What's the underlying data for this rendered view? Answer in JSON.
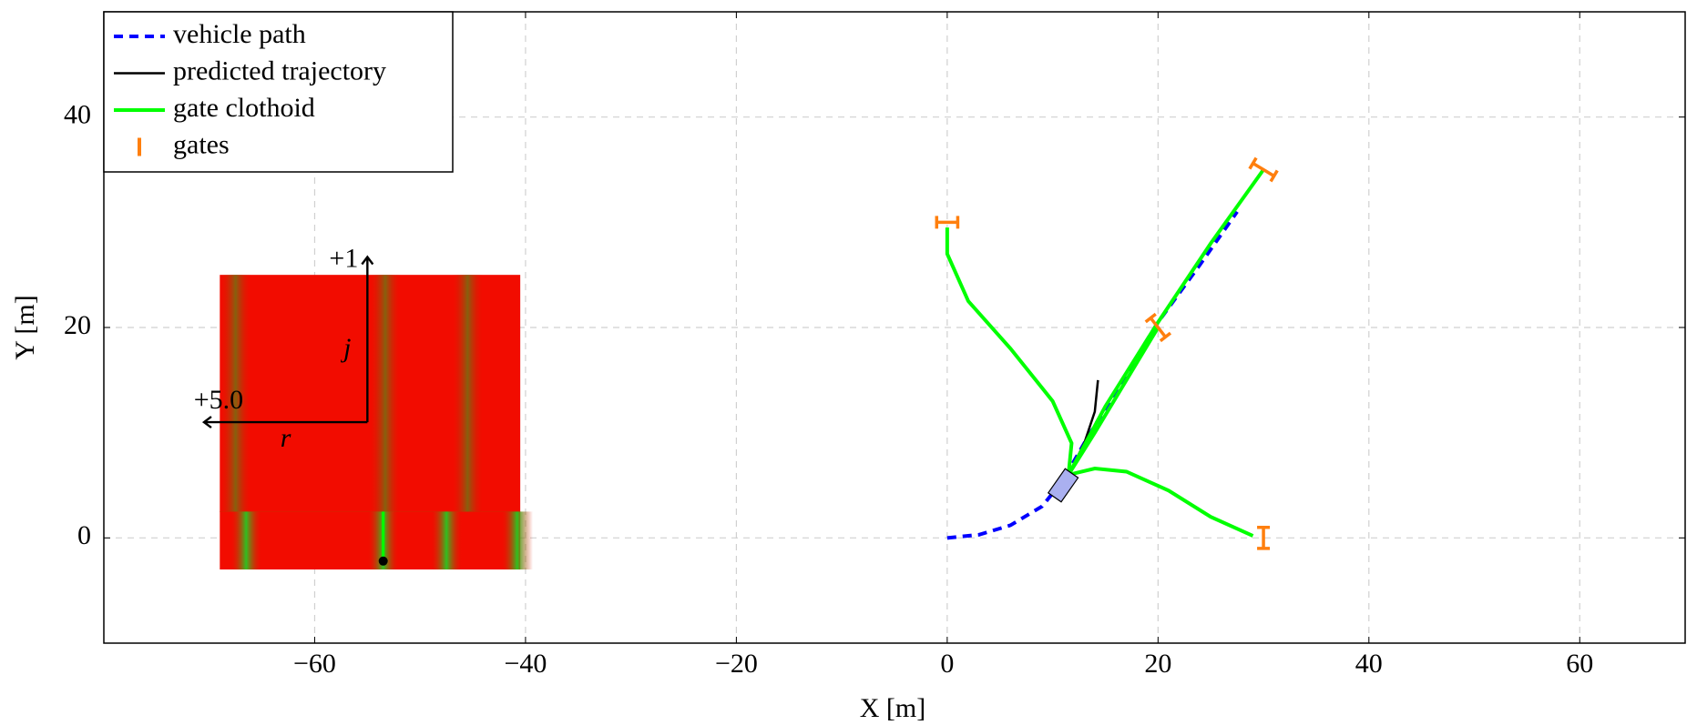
{
  "chart_data": {
    "type": "line",
    "xlabel": "X [m]",
    "ylabel": "Y [m]",
    "xlim": [
      -80,
      70
    ],
    "ylim": [
      -10,
      50
    ],
    "xticks": [
      {
        "value": -60,
        "label": "−60"
      },
      {
        "value": -40,
        "label": "−40"
      },
      {
        "value": -20,
        "label": "−20"
      },
      0,
      20,
      40,
      60
    ],
    "yticks": [
      0,
      20,
      40
    ],
    "grid": true,
    "legend": "north west",
    "series": [
      {
        "name": "vehicle path",
        "color": "#0000ff",
        "dashed": true,
        "x": [
          0,
          3,
          6,
          9,
          11,
          13,
          16,
          20,
          24,
          27.5
        ],
        "values": [
          0,
          0.3,
          1.2,
          3,
          5.5,
          9,
          14,
          20.5,
          26,
          31
        ]
      },
      {
        "name": "predicted trajectory",
        "color": "#000000",
        "x": [
          11.5,
          13,
          14,
          14.3
        ],
        "values": [
          6,
          9,
          12,
          15
        ]
      },
      {
        "name": "gate clothoid",
        "color": "#00ff00",
        "curves": [
          {
            "x": [
              11.5,
              11.8,
              10,
              6,
              2,
              0,
              0
            ],
            "values": [
              6,
              9,
              13,
              18,
              22.5,
              27,
              29.5
            ]
          },
          {
            "x": [
              11.5,
              14,
              17,
              21,
              25,
              29
            ],
            "values": [
              6,
              6.6,
              6.3,
              4.5,
              2,
              0.2
            ]
          },
          {
            "x": [
              11.5,
              14,
              17,
              20
            ],
            "values": [
              6,
              10,
              15,
              20
            ]
          },
          {
            "x": [
              11.5,
              15,
              20,
              25,
              30
            ],
            "values": [
              6,
              12.5,
              20.5,
              28,
              35
            ]
          }
        ]
      },
      {
        "name": "gates",
        "color": "#ff7f0e",
        "segments": [
          [
            -1,
            30,
            1,
            30
          ],
          [
            29,
            35.6,
            31,
            34.4
          ],
          [
            19.3,
            20.9,
            20.7,
            19.1
          ],
          [
            30,
            -1,
            30,
            1
          ]
        ]
      }
    ],
    "vehicle": {
      "x": 11,
      "y": 5,
      "heading": 55,
      "length": 2.8,
      "width": 1.5,
      "color": "#aab0f0"
    },
    "inset": {
      "xlim": [
        -69,
        -40.5
      ],
      "ylim": [
        -3,
        25
      ],
      "split": 2.5,
      "stripes_upper": [
        -68,
        -53.3,
        -45.5
      ],
      "stripes_lower": [
        -66.5,
        -53.5,
        -47.5,
        -40.8
      ],
      "origin": [
        -55,
        11
      ],
      "arrow_up_to": 26.7,
      "arrow_left_to": -70.5,
      "marker": [
        -53.5,
        -2.2
      ],
      "up_label": "+1",
      "up_axis": "j",
      "left_label": "+5.0",
      "left_axis": "r"
    }
  }
}
